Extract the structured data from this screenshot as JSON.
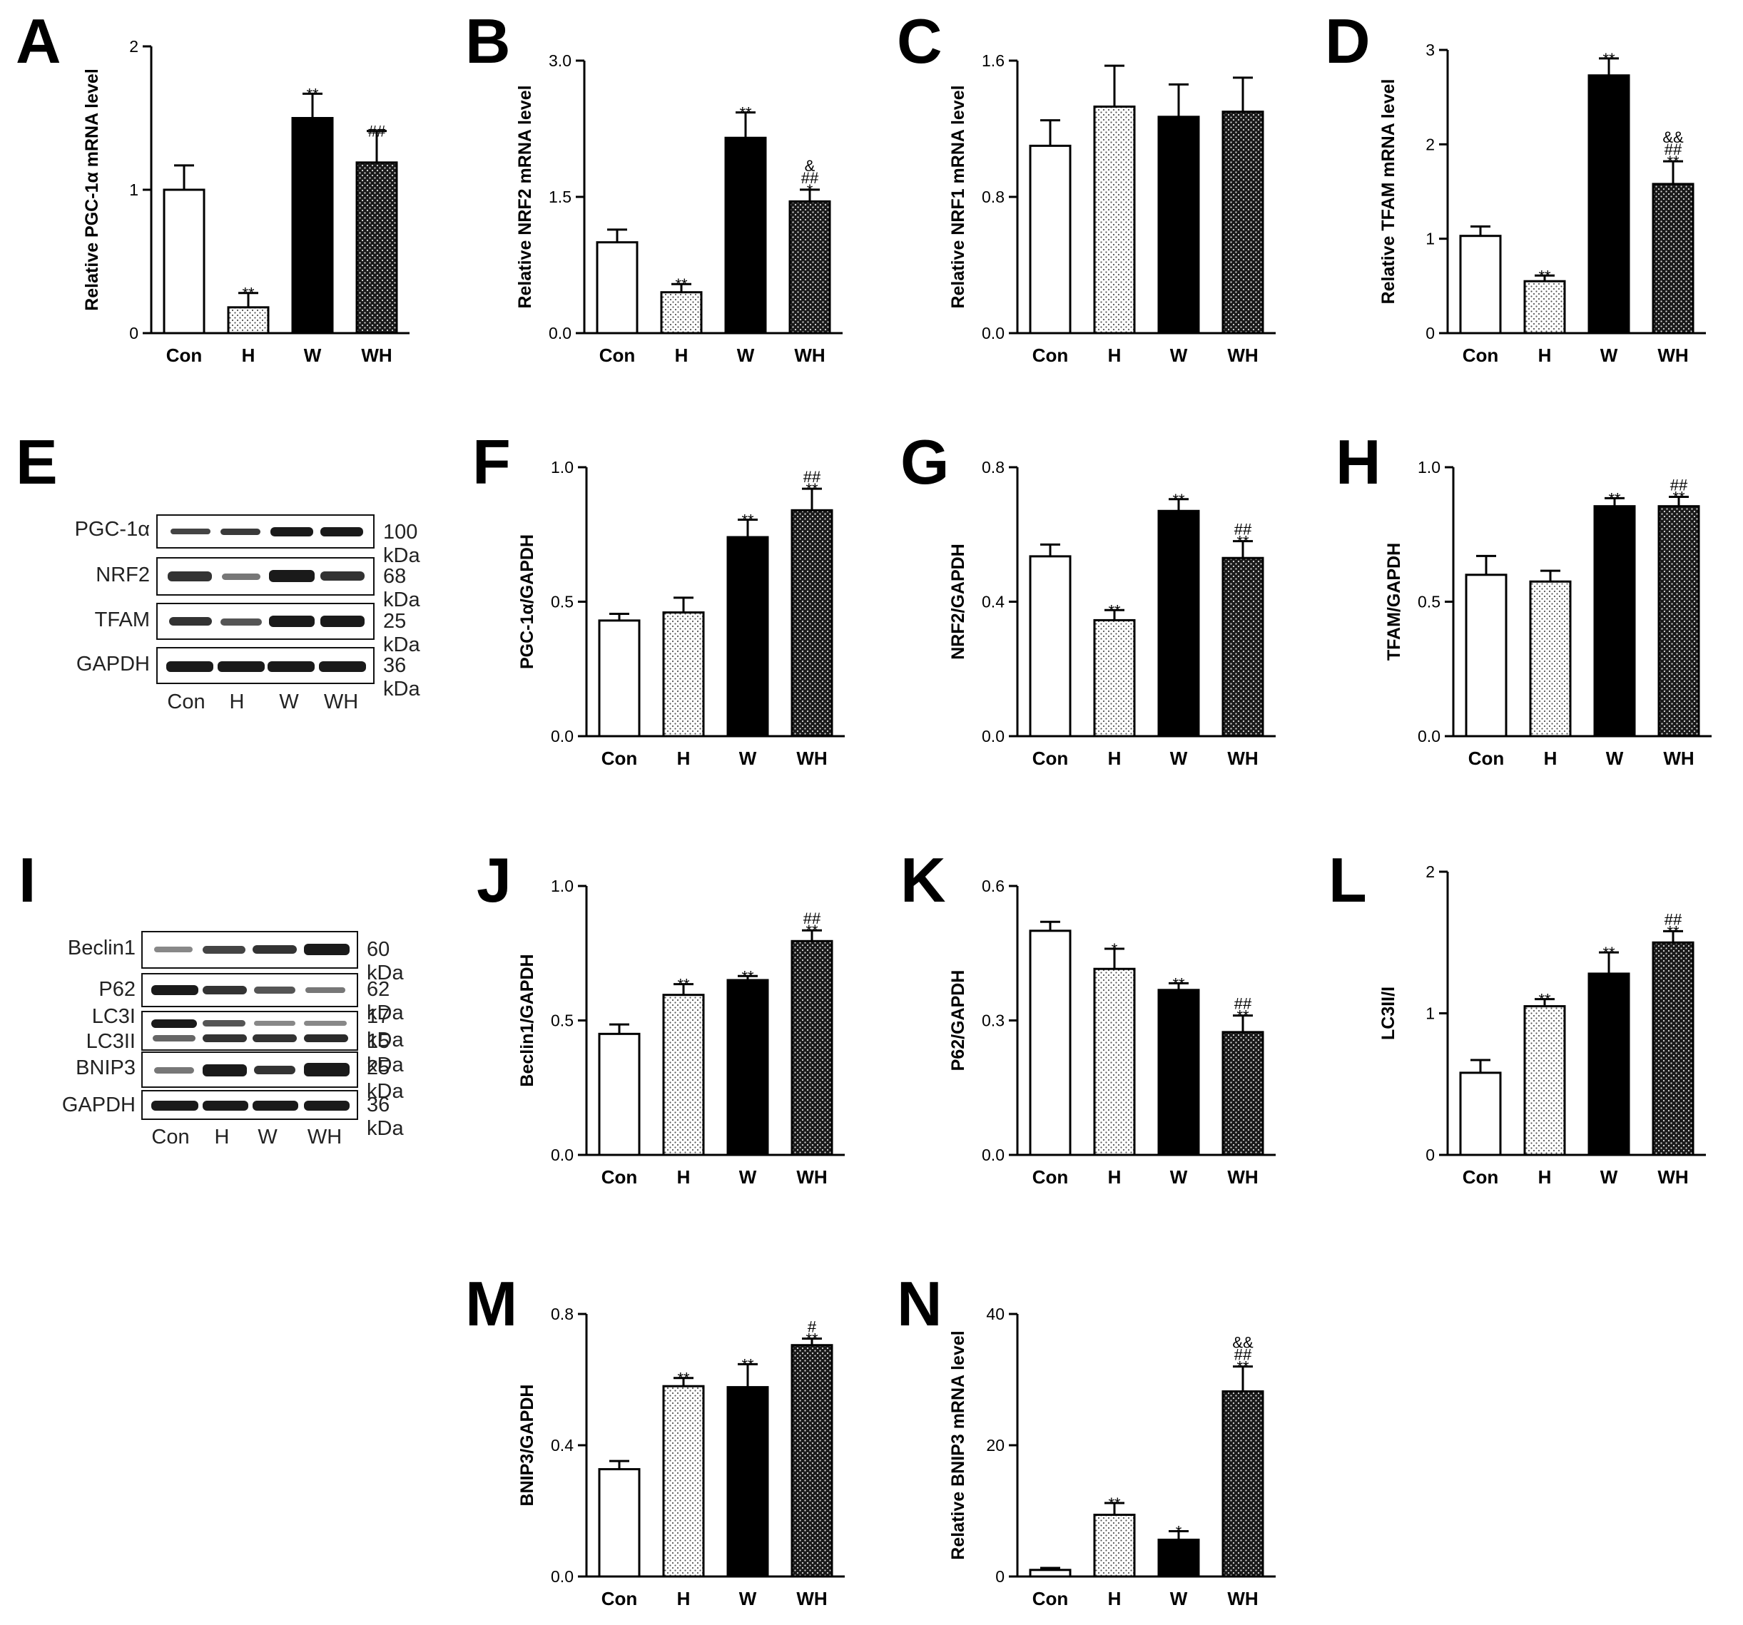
{
  "colors": {
    "con": "#ffffff",
    "h": "#ffffff",
    "w": "#000000",
    "wh": "#1a1a1a",
    "dot_light": "#555555",
    "dot_dark": "#dddddd"
  },
  "panels": {
    "A": {
      "label": "A"
    },
    "B": {
      "label": "B"
    },
    "C": {
      "label": "C"
    },
    "D": {
      "label": "D"
    },
    "E": {
      "label": "E"
    },
    "F": {
      "label": "F"
    },
    "G": {
      "label": "G"
    },
    "H": {
      "label": "H"
    },
    "I": {
      "label": "I"
    },
    "J": {
      "label": "J"
    },
    "K": {
      "label": "K"
    },
    "L": {
      "label": "L"
    },
    "M": {
      "label": "M"
    },
    "N": {
      "label": "N"
    }
  },
  "blot_E": {
    "rows": [
      {
        "protein": "PGC-1α",
        "kda": "100 kDa"
      },
      {
        "protein": "NRF2",
        "kda": "68 kDa"
      },
      {
        "protein": "TFAM",
        "kda": "25 kDa"
      },
      {
        "protein": "GAPDH",
        "kda": "36 kDa"
      }
    ],
    "lanes": [
      "Con",
      "H",
      "W",
      "WH"
    ]
  },
  "blot_I": {
    "rows": [
      {
        "protein": "Beclin1",
        "kda": "60 kDa"
      },
      {
        "protein": "P62",
        "kda": "62 kDa"
      },
      {
        "protein": "LC3I",
        "kda": "17 kDa"
      },
      {
        "protein": "LC3II",
        "kda": "15 kDa"
      },
      {
        "protein": "BNIP3",
        "kda": "25 kDa"
      },
      {
        "protein": "GAPDH",
        "kda": "36 kDa"
      }
    ],
    "lanes": [
      "Con",
      "H",
      "W",
      "WH"
    ]
  },
  "chart_data": [
    {
      "panel": "A",
      "type": "bar",
      "ylabel": "Relative PGC-1α mRNA level",
      "categories": [
        "Con",
        "H",
        "W",
        "WH"
      ],
      "ylim": [
        0,
        2
      ],
      "yticks": [
        "0",
        "1",
        "2"
      ],
      "values": [
        1.0,
        0.18,
        1.5,
        1.19
      ],
      "errors": [
        0.17,
        0.1,
        0.17,
        0.22
      ],
      "annotations": [
        [],
        [
          "**"
        ],
        [
          "**"
        ],
        [
          "##"
        ]
      ]
    },
    {
      "panel": "B",
      "type": "bar",
      "ylabel": "Relative NRF2 mRNA level",
      "categories": [
        "Con",
        "H",
        "W",
        "WH"
      ],
      "ylim": [
        0,
        3
      ],
      "yticks": [
        "0.0",
        "1.5",
        "3.0"
      ],
      "values": [
        1.0,
        0.45,
        2.15,
        1.45
      ],
      "errors": [
        0.14,
        0.09,
        0.28,
        0.13
      ],
      "annotations": [
        [],
        [
          "**"
        ],
        [
          "**"
        ],
        [
          "*",
          "##",
          "&"
        ]
      ]
    },
    {
      "panel": "C",
      "type": "bar",
      "ylabel": "Relative NRF1 mRNA level",
      "categories": [
        "Con",
        "H",
        "W",
        "WH"
      ],
      "ylim": [
        0,
        1.6
      ],
      "yticks": [
        "0.0",
        "0.8",
        "1.6"
      ],
      "values": [
        1.1,
        1.33,
        1.27,
        1.3
      ],
      "errors": [
        0.15,
        0.24,
        0.19,
        0.2
      ],
      "annotations": [
        [],
        [],
        [],
        []
      ]
    },
    {
      "panel": "D",
      "type": "bar",
      "ylabel": "Relative TFAM mRNA level",
      "categories": [
        "Con",
        "H",
        "W",
        "WH"
      ],
      "ylim": [
        0,
        3
      ],
      "yticks": [
        "0",
        "1",
        "2",
        "3"
      ],
      "values": [
        1.03,
        0.55,
        2.73,
        1.58
      ],
      "errors": [
        0.1,
        0.06,
        0.18,
        0.24
      ],
      "annotations": [
        [],
        [
          "**"
        ],
        [
          "**"
        ],
        [
          "**",
          "##",
          "&&"
        ]
      ]
    },
    {
      "panel": "F",
      "type": "bar",
      "ylabel": "PGC-1α/GAPDH",
      "categories": [
        "Con",
        "H",
        "W",
        "WH"
      ],
      "ylim": [
        0,
        1
      ],
      "yticks": [
        "0.0",
        "0.5",
        "1.0"
      ],
      "values": [
        0.43,
        0.46,
        0.74,
        0.84
      ],
      "errors": [
        0.025,
        0.055,
        0.065,
        0.08
      ],
      "annotations": [
        [],
        [],
        [
          "**"
        ],
        [
          "**",
          "##"
        ]
      ]
    },
    {
      "panel": "G",
      "type": "bar",
      "ylabel": "NRF2/GAPDH",
      "categories": [
        "Con",
        "H",
        "W",
        "WH"
      ],
      "ylim": [
        0,
        0.8
      ],
      "yticks": [
        "0.0",
        "0.4",
        "0.8"
      ],
      "values": [
        0.535,
        0.345,
        0.67,
        0.53
      ],
      "errors": [
        0.035,
        0.03,
        0.035,
        0.05
      ],
      "annotations": [
        [],
        [
          "**"
        ],
        [
          "**"
        ],
        [
          "**",
          "##"
        ]
      ]
    },
    {
      "panel": "H",
      "type": "bar",
      "ylabel": "TFAM/GAPDH",
      "categories": [
        "Con",
        "H",
        "W",
        "WH"
      ],
      "ylim": [
        0,
        1
      ],
      "yticks": [
        "0.0",
        "0.5",
        "1.0"
      ],
      "values": [
        0.6,
        0.575,
        0.855,
        0.855
      ],
      "errors": [
        0.07,
        0.04,
        0.03,
        0.035
      ],
      "annotations": [
        [],
        [],
        [
          "**"
        ],
        [
          "**",
          "##"
        ]
      ]
    },
    {
      "panel": "J",
      "type": "bar",
      "ylabel": "Beclin1/GAPDH",
      "categories": [
        "Con",
        "H",
        "W",
        "WH"
      ],
      "ylim": [
        0,
        1
      ],
      "yticks": [
        "0.0",
        "0.5",
        "1.0"
      ],
      "values": [
        0.45,
        0.595,
        0.65,
        0.795
      ],
      "errors": [
        0.035,
        0.04,
        0.015,
        0.04
      ],
      "annotations": [
        [],
        [
          "**"
        ],
        [
          "**"
        ],
        [
          "**",
          "##"
        ]
      ]
    },
    {
      "panel": "K",
      "type": "bar",
      "ylabel": "P62/GAPDH",
      "categories": [
        "Con",
        "H",
        "W",
        "WH"
      ],
      "ylim": [
        0,
        0.6
      ],
      "yticks": [
        "0.0",
        "0.3",
        "0.6"
      ],
      "values": [
        0.5,
        0.415,
        0.368,
        0.274
      ],
      "errors": [
        0.02,
        0.045,
        0.015,
        0.037
      ],
      "annotations": [
        [],
        [
          "*"
        ],
        [
          "**"
        ],
        [
          "**",
          "##"
        ]
      ]
    },
    {
      "panel": "L",
      "type": "bar",
      "ylabel": "LC3II/I",
      "categories": [
        "Con",
        "H",
        "W",
        "WH"
      ],
      "ylim": [
        0,
        2
      ],
      "yticks": [
        "0",
        "1",
        "2"
      ],
      "values": [
        0.58,
        1.05,
        1.28,
        1.5
      ],
      "errors": [
        0.09,
        0.05,
        0.15,
        0.08
      ],
      "annotations": [
        [],
        [
          "**"
        ],
        [
          "**"
        ],
        [
          "**",
          "##"
        ]
      ]
    },
    {
      "panel": "M",
      "type": "bar",
      "ylabel": "BNIP3/GAPDH",
      "categories": [
        "Con",
        "H",
        "W",
        "WH"
      ],
      "ylim": [
        0,
        0.8
      ],
      "yticks": [
        "0.0",
        "0.4",
        "0.8"
      ],
      "values": [
        0.327,
        0.58,
        0.577,
        0.705
      ],
      "errors": [
        0.025,
        0.025,
        0.07,
        0.02
      ],
      "annotations": [
        [],
        [
          "**"
        ],
        [
          "**"
        ],
        [
          "**",
          "#"
        ]
      ]
    },
    {
      "panel": "N",
      "type": "bar",
      "ylabel": "Relative BNIP3 mRNA level",
      "categories": [
        "Con",
        "H",
        "W",
        "WH"
      ],
      "ylim": [
        0,
        40
      ],
      "yticks": [
        "0",
        "20",
        "40"
      ],
      "values": [
        1.0,
        9.4,
        5.6,
        28.2
      ],
      "errors": [
        0.3,
        1.8,
        1.3,
        3.8
      ],
      "annotations": [
        [],
        [
          "**"
        ],
        [
          "*"
        ],
        [
          "**",
          "##",
          "&&"
        ]
      ]
    }
  ]
}
